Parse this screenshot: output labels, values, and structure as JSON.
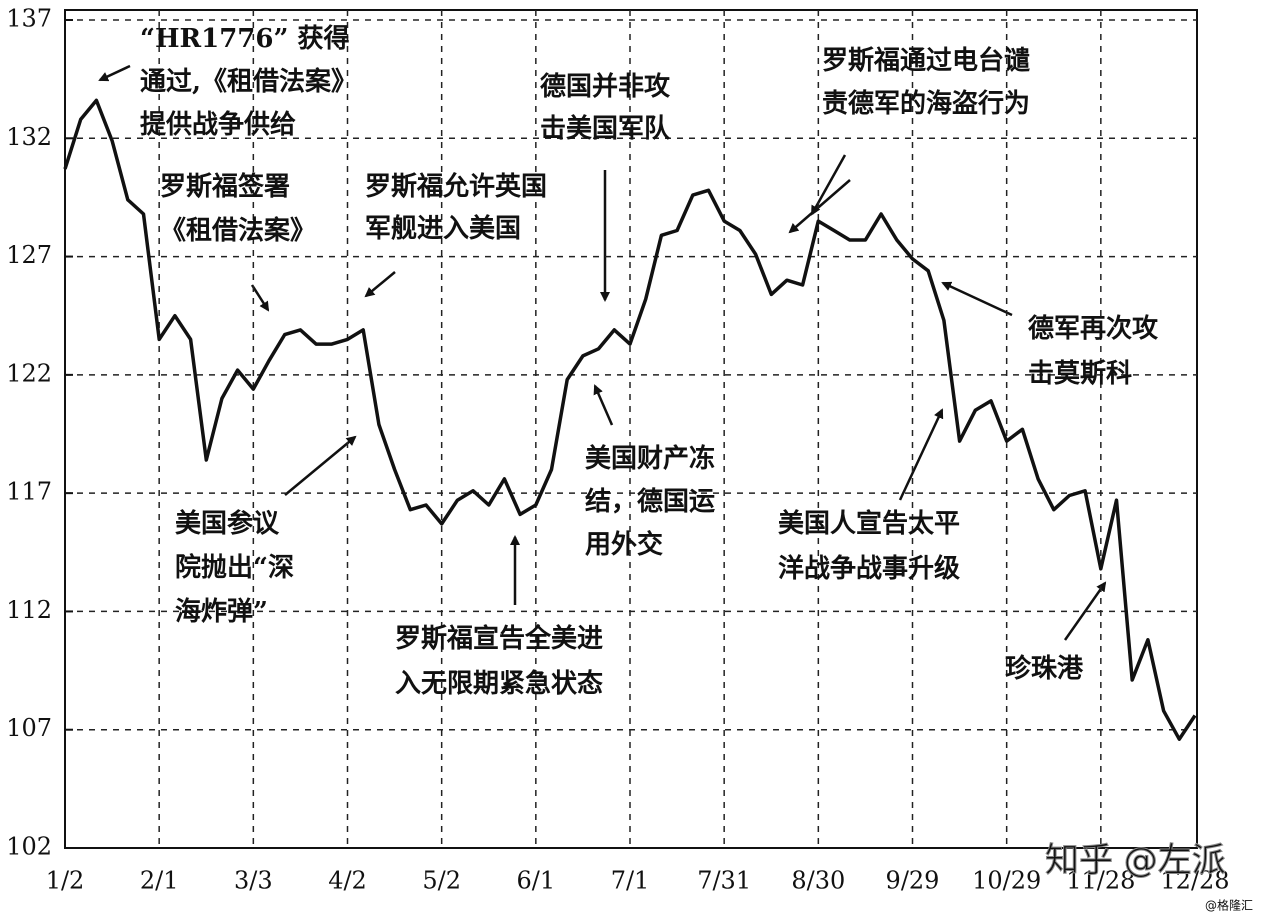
{
  "chart_data": {
    "type": "line",
    "categories": [
      "1/2",
      null,
      null,
      null,
      null,
      null,
      "2/1",
      null,
      null,
      null,
      null,
      null,
      "3/3",
      null,
      null,
      null,
      null,
      null,
      "4/2",
      null,
      null,
      null,
      null,
      null,
      "5/2",
      null,
      null,
      null,
      null,
      null,
      "6/1",
      null,
      null,
      null,
      null,
      null,
      "7/1",
      null,
      null,
      null,
      null,
      null,
      "7/31",
      null,
      null,
      null,
      null,
      null,
      "8/30",
      null,
      null,
      null,
      null,
      null,
      "9/29",
      null,
      null,
      null,
      null,
      null,
      "10/29",
      null,
      null,
      null,
      null,
      null,
      "11/28",
      null,
      null,
      null,
      null,
      null,
      "12/28"
    ],
    "values": [
      130.7,
      132.8,
      133.6,
      131.9,
      129.4,
      128.8,
      123.5,
      124.5,
      123.5,
      118.4,
      121,
      122.2,
      121.4,
      122.6,
      123.7,
      123.9,
      123.3,
      123.3,
      123.5,
      123.9,
      119.9,
      118,
      116.3,
      116.5,
      115.7,
      116.7,
      117.1,
      116.5,
      117.6,
      116.1,
      116.5,
      118,
      121.8,
      122.8,
      123.1,
      123.9,
      123.3,
      125.2,
      127.9,
      128.1,
      129.6,
      129.8,
      128.5,
      128.1,
      127.1,
      125.4,
      126,
      125.8,
      128.5,
      128.1,
      127.7,
      127.7,
      128.8,
      127.7,
      126.9,
      126.4,
      124.3,
      119.2,
      120.5,
      120.9,
      119.2,
      119.7,
      117.6,
      116.3,
      116.9,
      117.1,
      113.8,
      116.7,
      109.1,
      110.8,
      107.8,
      106.6,
      107.6
    ],
    "color": "#111111",
    "ylim": [
      102,
      137
    ],
    "yticks": [
      102,
      107,
      112,
      117,
      122,
      127,
      132,
      137
    ],
    "grid": true,
    "annotations": [
      [
        "“HR1776” 获得",
        "通过,《租借法案》",
        "提供战争供给"
      ],
      [
        "罗斯福签署",
        "《租借法案》"
      ],
      [
        "罗斯福允许英国",
        "军舰进入美国"
      ],
      [
        "德国并非攻",
        "击美国军队"
      ],
      [
        "罗斯福通过电台谴",
        "责德军的海盗行为"
      ],
      [
        "德军再次攻",
        "击莫斯科"
      ],
      [
        "美国财产冻",
        "结，德国运",
        "用外交"
      ],
      [
        "美国人宣告太平",
        "洋战争战事升级"
      ],
      [
        "美国参议",
        "院抛出“深",
        "海炸弹”"
      ],
      [
        "罗斯福宣告全美进",
        "入无限期紧急状态"
      ],
      [
        "珍珠港"
      ]
    ],
    "watermarks": [
      "知乎 @左派",
      "@格隆汇"
    ]
  }
}
